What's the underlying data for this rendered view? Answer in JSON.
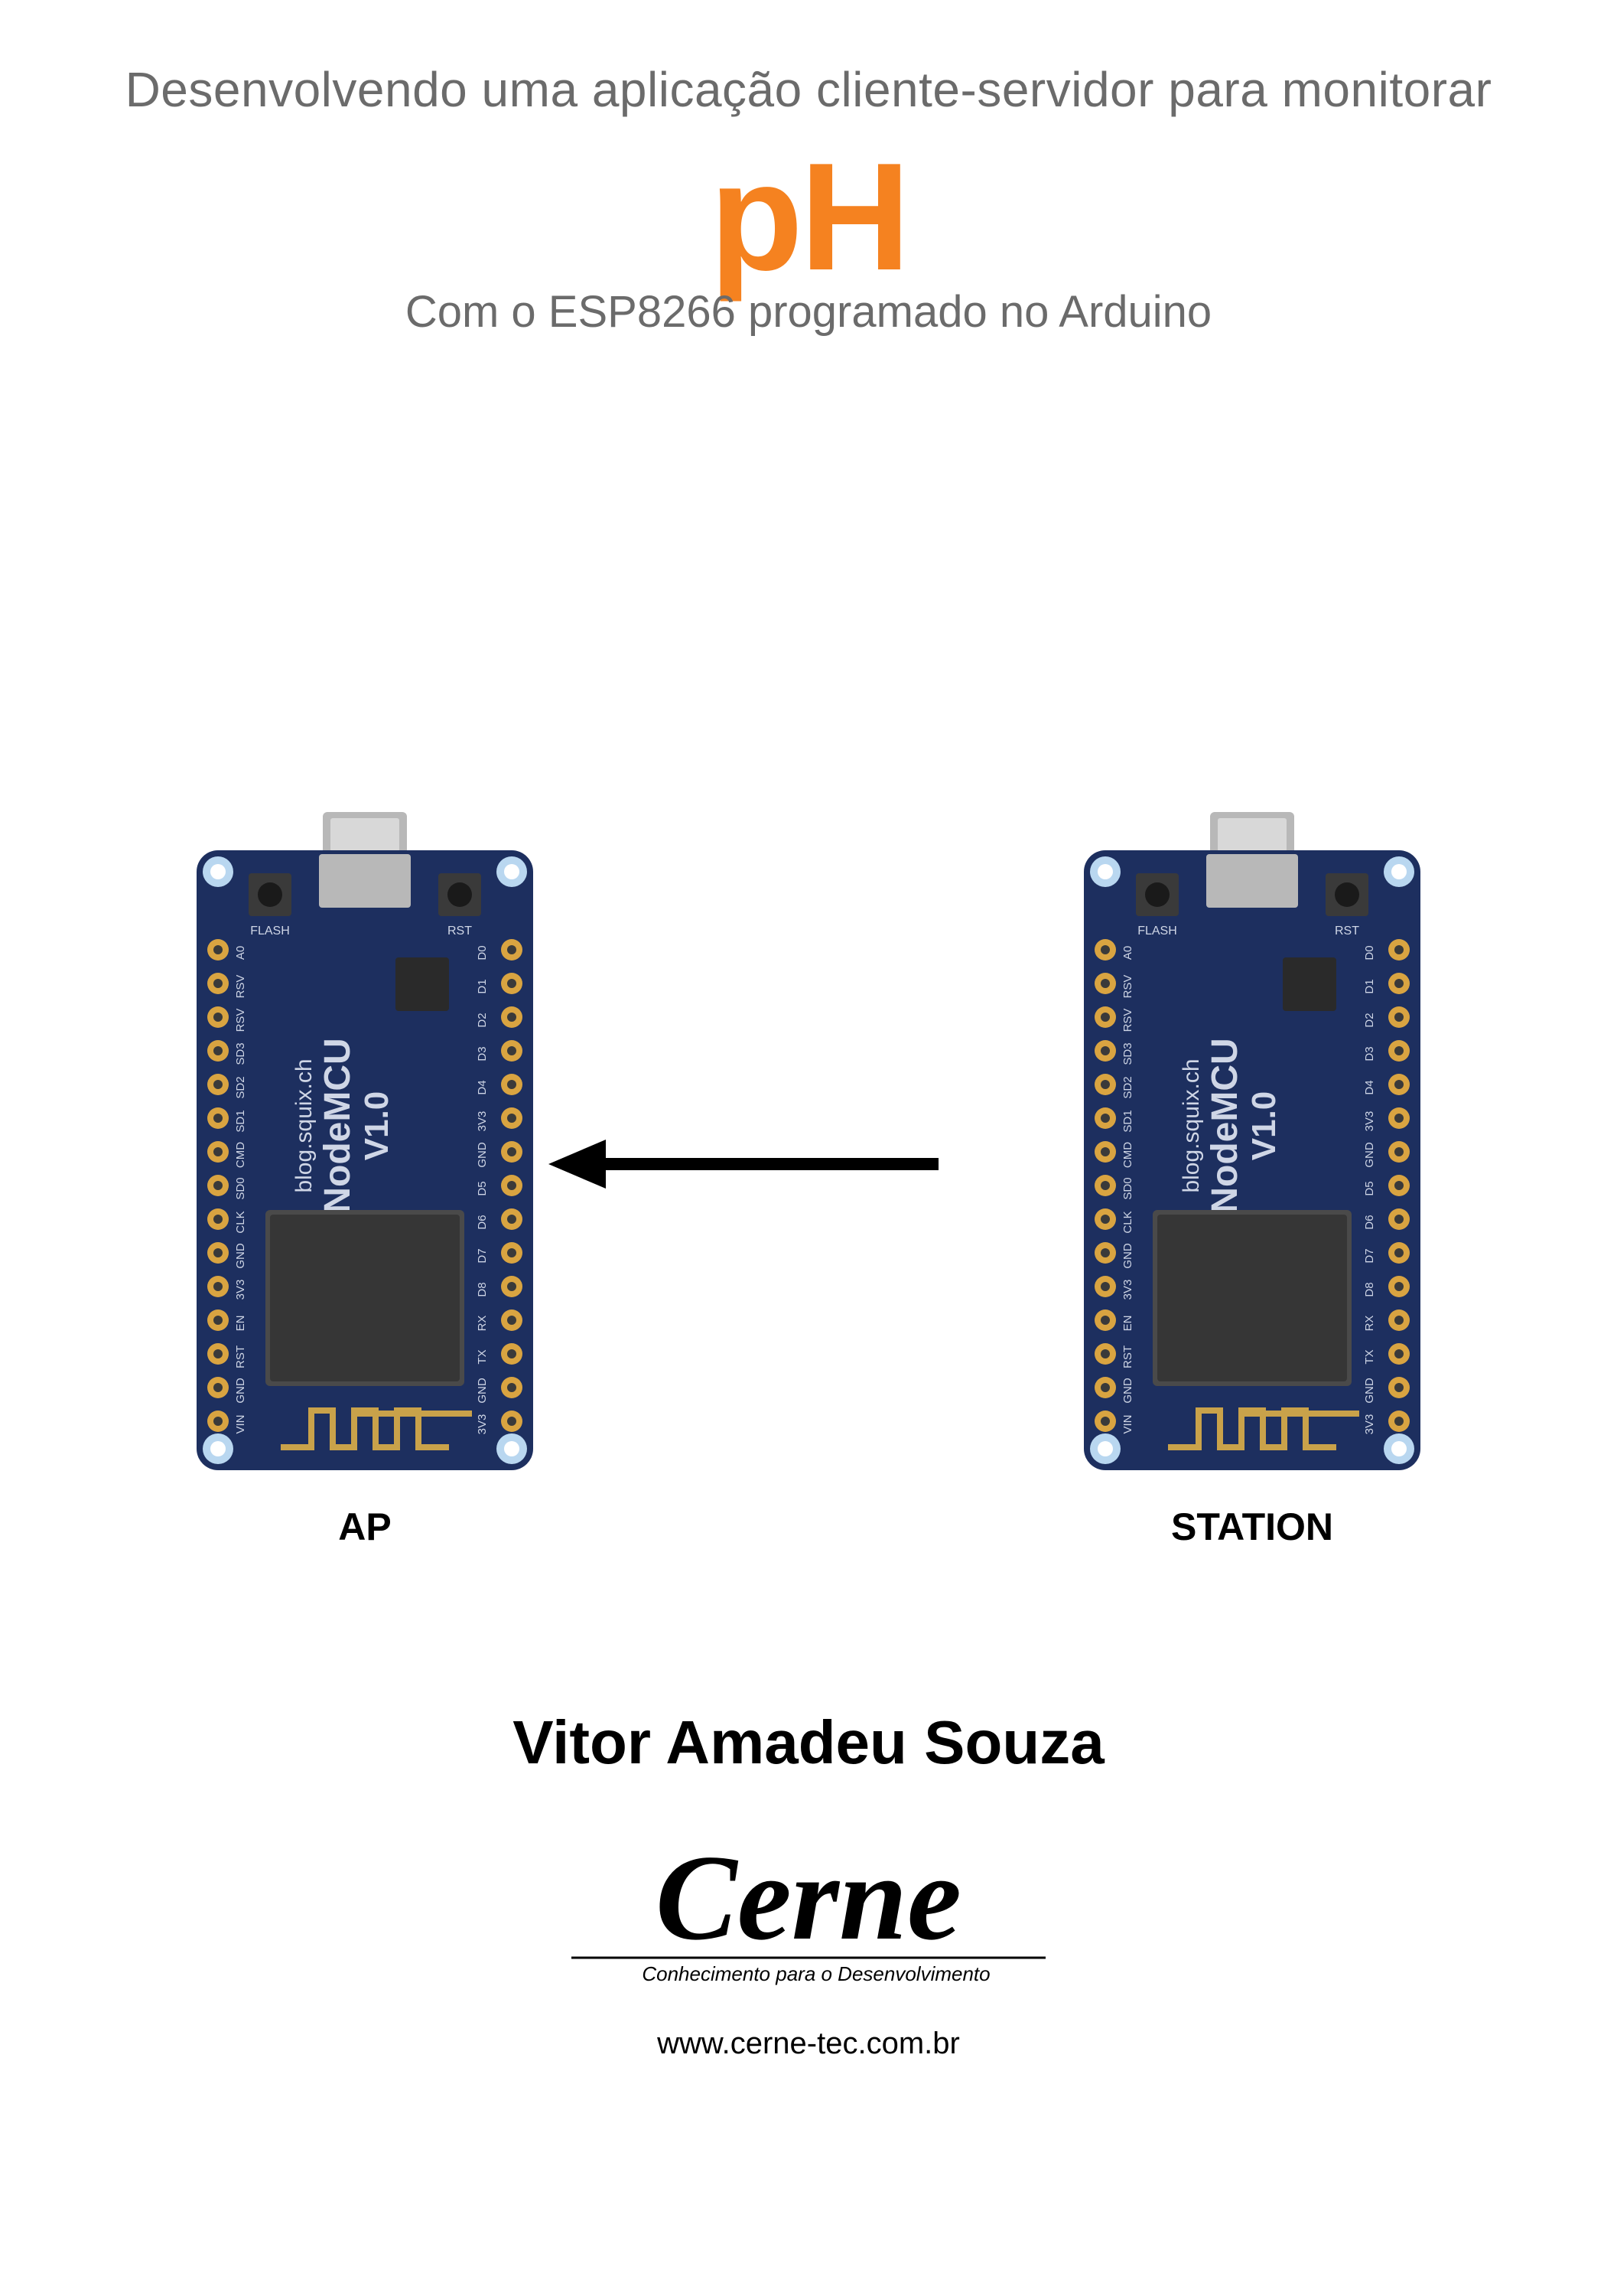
{
  "title": {
    "line1": "Desenvolvendo uma aplicação cliente-servidor para monitorar",
    "highlight": "pH",
    "line2": "Com o ESP8266 programado no Arduino",
    "line1_color": "#6b6b6b",
    "line1_fontsize": 64,
    "highlight_color": "#f58220",
    "highlight_fontsize": 200,
    "line2_color": "#6b6b6b",
    "line2_fontsize": 58
  },
  "diagram": {
    "type": "flowchart",
    "arrow_direction": "right-to-left",
    "nodes": [
      {
        "id": "ap",
        "label": "AP",
        "board": "NodeMCU",
        "version": "V1.0",
        "subtext": "blog.squix.ch"
      },
      {
        "id": "station",
        "label": "STATION",
        "board": "NodeMCU",
        "version": "V1.0",
        "subtext": "blog.squix.ch"
      }
    ],
    "board_style": {
      "pcb_color": "#1d2f5f",
      "silk_color": "#cfd6e6",
      "pin_gold": "#d9a441",
      "pin_hole": "#e8e8e8",
      "corner_hole": "#b9d7f0",
      "chip_dark": "#2a2a2a",
      "chip_mid": "#4a4a4a",
      "antenna_color": "#c9a24a",
      "usb_color": "#b8b8b8",
      "button_body": "#3a3a3a",
      "button_top": "#1a1a1a",
      "label_fontsize": 50,
      "label_color": "#000000",
      "pins_left": [
        "A0",
        "RSV",
        "RSV",
        "SD3",
        "SD2",
        "SD1",
        "CMD",
        "SD0",
        "CLK",
        "GND",
        "3V3",
        "EN",
        "RST",
        "GND",
        "VIN"
      ],
      "pins_right": [
        "D0",
        "D1",
        "D2",
        "D3",
        "D4",
        "3V3",
        "GND",
        "D5",
        "D6",
        "D7",
        "D8",
        "RX",
        "TX",
        "GND",
        "3V3"
      ],
      "btn_flash": "FLASH",
      "btn_rst": "RST"
    },
    "arrow_style": {
      "color": "#000000",
      "shaft_width": 16,
      "head_size": 60
    }
  },
  "author": "Vitor Amadeu Souza",
  "logo": {
    "text": "Cerne",
    "tagline": "Conhecimento para o Desenvolvimento",
    "url": "www.cerne-tec.com.br",
    "text_color": "#000000",
    "tagline_color": "#000000"
  },
  "background_color": "#ffffff"
}
